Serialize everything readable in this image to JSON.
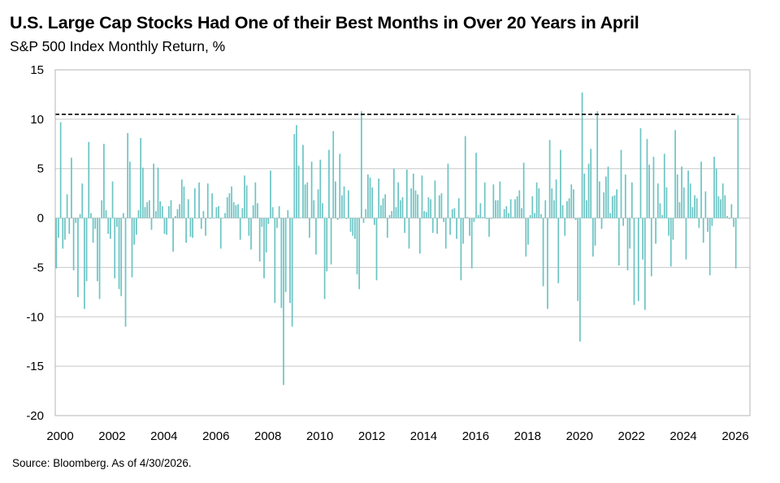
{
  "title": "U.S. Large Cap Stocks Had One of their Best Months in Over 20 Years in April",
  "subtitle": "S&P 500 Index Monthly Return, %",
  "source": "Source: Bloomberg. As of 4/30/2026.",
  "colors": {
    "bar": "#6cc4c4",
    "grid": "#c8c8c8",
    "reference_line": "#000000",
    "frame": "#b4b4b4"
  },
  "chart_data": {
    "type": "bar",
    "title": "U.S. Large Cap Stocks Had One of their Best Months in Over 20 Years in April",
    "subtitle": "S&P 500 Index Monthly Return, %",
    "ylim": [
      -20,
      15
    ],
    "yticks": [
      15,
      10,
      5,
      0,
      -5,
      -10,
      -15,
      -20
    ],
    "xlim": [
      2000,
      2026.75
    ],
    "xticks": [
      2000,
      2002,
      2004,
      2006,
      2008,
      2010,
      2012,
      2014,
      2016,
      2018,
      2020,
      2022,
      2024,
      2026
    ],
    "grid": "horizontal",
    "start_month": "2000-01",
    "end_month": "2026-04",
    "reference_line": {
      "y": 10.5,
      "style": "dashed"
    },
    "series": [
      {
        "values": [
          -5.1,
          -2.0,
          9.7,
          -3.1,
          -2.2,
          2.4,
          -1.6,
          6.1,
          -5.3,
          -0.5,
          -8.0,
          0.4,
          3.5,
          -9.2,
          -6.4,
          7.7,
          0.5,
          -2.5,
          -1.1,
          -6.4,
          -8.2,
          1.8,
          7.5,
          0.8,
          -1.6,
          -2.1,
          3.7,
          -6.1,
          -0.9,
          -7.2,
          -7.9,
          0.5,
          -11.0,
          8.6,
          5.7,
          -6.0,
          -2.7,
          -1.7,
          0.8,
          8.1,
          5.1,
          1.1,
          1.6,
          1.8,
          -1.2,
          5.5,
          0.7,
          5.1,
          1.7,
          1.2,
          -1.6,
          -1.7,
          1.2,
          1.8,
          -3.4,
          0.2,
          0.9,
          1.4,
          3.9,
          3.2,
          -2.5,
          1.9,
          -1.9,
          -2.0,
          3.0,
          0.0,
          3.6,
          -1.1,
          0.7,
          -1.8,
          3.5,
          -0.1,
          2.5,
          0.0,
          1.1,
          1.2,
          -3.1,
          0.0,
          0.5,
          2.1,
          2.5,
          3.2,
          1.6,
          1.3,
          1.4,
          -2.2,
          1.0,
          4.3,
          3.3,
          -1.8,
          -3.2,
          1.3,
          3.6,
          1.5,
          -4.4,
          -0.9,
          -6.1,
          -3.5,
          -0.6,
          4.8,
          1.1,
          -8.6,
          -1.0,
          1.2,
          -9.1,
          -16.9,
          -7.5,
          0.8,
          -8.6,
          -11.0,
          8.5,
          9.4,
          5.3,
          0.0,
          7.4,
          3.4,
          3.6,
          -2.0,
          5.7,
          1.8,
          -3.7,
          2.9,
          5.9,
          1.5,
          -8.2,
          -5.4,
          6.9,
          -4.7,
          8.8,
          3.7,
          -0.2,
          6.5,
          2.3,
          3.2,
          -0.1,
          2.8,
          -1.4,
          -1.8,
          -2.1,
          -5.7,
          -7.2,
          10.8,
          -0.5,
          0.9,
          4.4,
          4.1,
          3.1,
          -0.7,
          -6.3,
          4.0,
          1.3,
          2.0,
          2.4,
          -2.0,
          0.3,
          0.7,
          5.0,
          1.1,
          3.6,
          1.8,
          2.1,
          -1.5,
          4.9,
          -3.1,
          3.0,
          4.5,
          2.8,
          2.4,
          -3.6,
          4.3,
          0.7,
          0.6,
          2.1,
          1.9,
          -1.5,
          3.8,
          -1.6,
          2.3,
          2.5,
          -0.4,
          -3.1,
          5.5,
          -1.7,
          0.9,
          1.0,
          -2.1,
          2.0,
          -6.3,
          -2.6,
          8.3,
          0.1,
          -1.8,
          -5.1,
          -0.4,
          6.6,
          0.3,
          1.5,
          0.1,
          3.6,
          -0.1,
          -1.9,
          -0.1,
          3.4,
          1.8,
          1.8,
          3.7,
          0.0,
          0.9,
          1.2,
          0.5,
          1.9,
          0.1,
          1.9,
          2.2,
          2.8,
          1.0,
          5.6,
          -3.9,
          -2.7,
          0.3,
          2.2,
          0.5,
          3.6,
          3.0,
          0.4,
          -6.9,
          1.8,
          -9.2,
          7.9,
          3.0,
          1.8,
          3.9,
          -6.6,
          6.9,
          1.3,
          -1.8,
          1.7,
          2.0,
          3.4,
          2.9,
          -0.2,
          -8.4,
          -12.5,
          12.7,
          4.5,
          1.8,
          5.5,
          7.0,
          -3.9,
          -2.8,
          10.8,
          3.7,
          -1.1,
          2.6,
          4.2,
          5.2,
          0.5,
          2.2,
          2.3,
          2.9,
          -4.8,
          6.9,
          -0.8,
          4.4,
          -5.3,
          -3.1,
          3.6,
          -8.8,
          0.0,
          -8.4,
          9.1,
          -4.2,
          -9.3,
          8.0,
          5.4,
          -5.9,
          6.2,
          -2.6,
          3.5,
          1.5,
          0.3,
          6.5,
          3.1,
          -1.8,
          -4.9,
          -2.2,
          8.9,
          4.4,
          1.6,
          5.2,
          3.1,
          -4.2,
          4.8,
          3.5,
          1.1,
          2.3,
          2.0,
          -1.0,
          5.7,
          -2.5,
          2.7,
          -1.4,
          -5.8,
          -0.8,
          6.2,
          5.0,
          2.2,
          1.9,
          3.5,
          2.3,
          0.2,
          -0.1,
          1.4,
          -0.9,
          -5.1,
          10.4
        ]
      }
    ]
  }
}
